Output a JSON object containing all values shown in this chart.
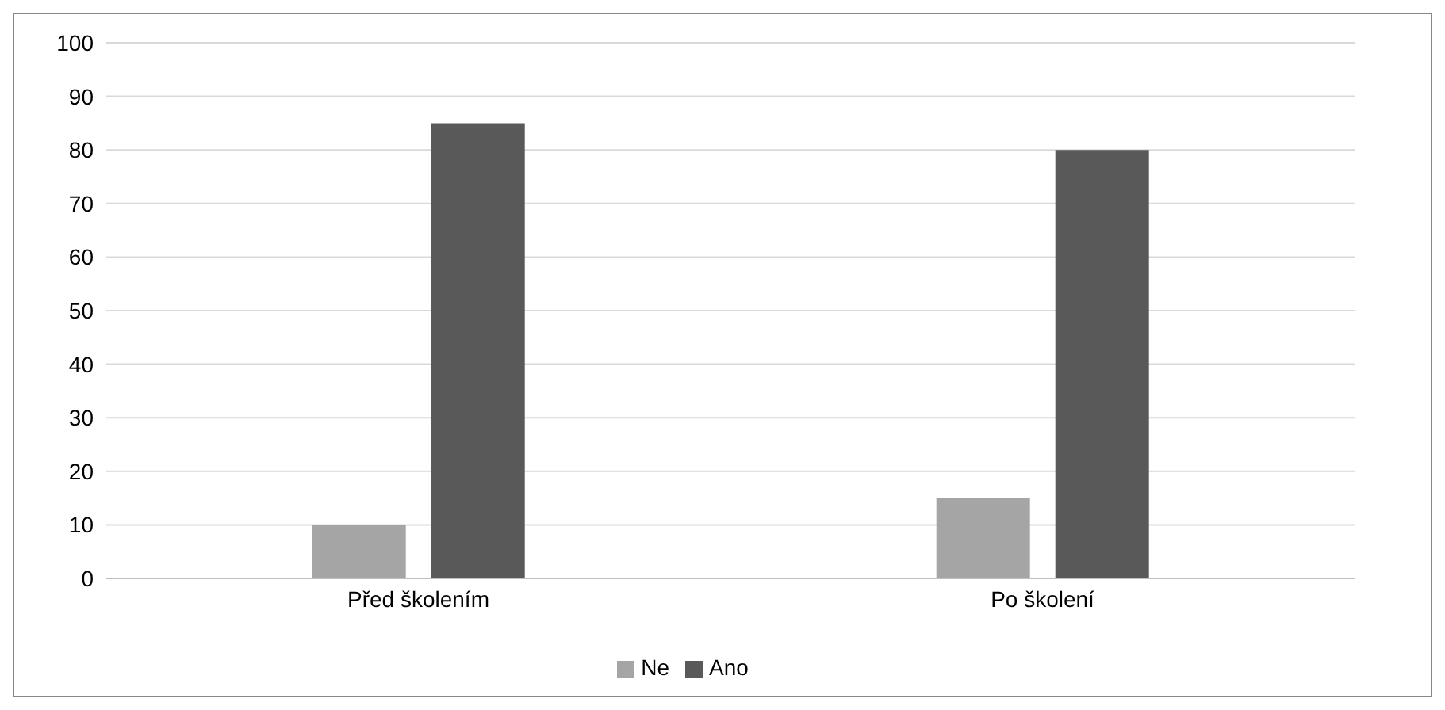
{
  "chart_data": {
    "type": "bar",
    "categories": [
      "Před školením",
      "Po školení"
    ],
    "series": [
      {
        "name": "Ne",
        "color": "#a5a5a5",
        "values": [
          10,
          15
        ]
      },
      {
        "name": "Ano",
        "color": "#595959",
        "values": [
          85,
          80
        ]
      }
    ],
    "ylim": [
      0,
      100
    ],
    "yticks": [
      0,
      10,
      20,
      30,
      40,
      50,
      60,
      70,
      80,
      90,
      100
    ],
    "grid": "y",
    "legend": "bottom"
  }
}
